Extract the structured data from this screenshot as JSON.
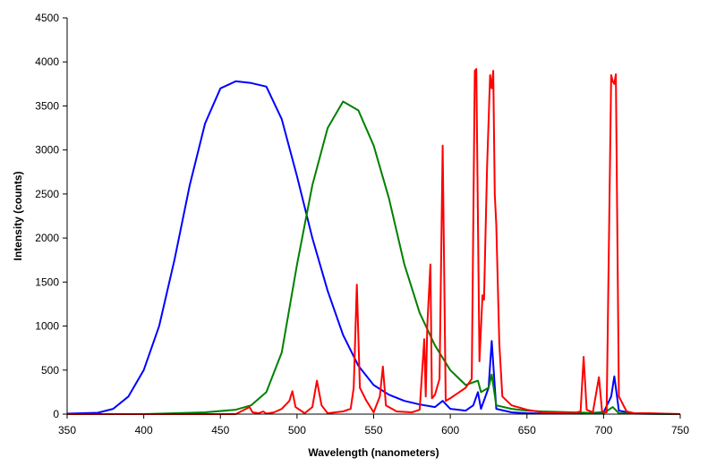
{
  "chart_data": {
    "type": "line",
    "xlabel": "Wavelength (nanometers)",
    "ylabel": "Intensity (counts)",
    "xlim": [
      350,
      750
    ],
    "ylim": [
      0,
      4500
    ],
    "xticks": [
      350,
      400,
      450,
      500,
      550,
      600,
      650,
      700,
      750
    ],
    "yticks": [
      0,
      500,
      1000,
      1500,
      2000,
      2500,
      3000,
      3500,
      4000,
      4500
    ],
    "grid": false,
    "legend": "none",
    "series": [
      {
        "color": "#0000ff",
        "x": [
          350,
          370,
          380,
          390,
          400,
          410,
          420,
          430,
          440,
          450,
          460,
          470,
          480,
          490,
          500,
          510,
          520,
          530,
          540,
          550,
          560,
          570,
          580,
          590,
          595,
          600,
          610,
          615,
          618,
          620,
          625,
          627,
          630,
          640,
          650,
          660,
          680,
          700,
          705,
          707,
          710,
          720,
          750
        ],
        "y": [
          5,
          15,
          60,
          200,
          500,
          1000,
          1750,
          2600,
          3300,
          3700,
          3780,
          3760,
          3720,
          3350,
          2700,
          2000,
          1400,
          900,
          550,
          330,
          220,
          150,
          110,
          80,
          150,
          60,
          40,
          100,
          250,
          60,
          300,
          830,
          60,
          20,
          10,
          5,
          5,
          20,
          200,
          430,
          40,
          5,
          0
        ]
      },
      {
        "color": "#008000",
        "x": [
          350,
          400,
          440,
          460,
          470,
          480,
          490,
          500,
          510,
          520,
          530,
          540,
          550,
          560,
          570,
          580,
          590,
          600,
          610,
          618,
          620,
          625,
          627,
          630,
          640,
          650,
          660,
          680,
          700,
          706,
          710,
          720,
          750
        ],
        "y": [
          0,
          0,
          20,
          50,
          100,
          250,
          700,
          1700,
          2600,
          3250,
          3550,
          3450,
          3050,
          2450,
          1700,
          1150,
          780,
          500,
          330,
          380,
          250,
          300,
          450,
          100,
          60,
          40,
          30,
          20,
          10,
          80,
          10,
          5,
          0
        ]
      },
      {
        "color": "#ff0000",
        "x": [
          350,
          460,
          469,
          471,
          475,
          478,
          480,
          485,
          490,
          495,
          497,
          499,
          505,
          510,
          513,
          516,
          520,
          530,
          535,
          537,
          539,
          541,
          545,
          550,
          554,
          556,
          558,
          565,
          575,
          580,
          583,
          584,
          585,
          587,
          588,
          590,
          593,
          595,
          597,
          600,
          605,
          610,
          614,
          616,
          617,
          619,
          621,
          622,
          624,
          626,
          627,
          628,
          629,
          630,
          632,
          634,
          640,
          650,
          660,
          670,
          680,
          685,
          687,
          689,
          693,
          697,
          699,
          702,
          705,
          706,
          707,
          708,
          710,
          715,
          720,
          730,
          750
        ],
        "y": [
          0,
          0,
          80,
          20,
          10,
          30,
          5,
          20,
          60,
          150,
          260,
          80,
          10,
          80,
          380,
          100,
          10,
          30,
          60,
          300,
          1470,
          300,
          160,
          20,
          200,
          540,
          100,
          30,
          20,
          50,
          850,
          200,
          1000,
          1700,
          180,
          220,
          400,
          3050,
          150,
          180,
          240,
          300,
          400,
          3900,
          3920,
          600,
          1350,
          1300,
          2800,
          3850,
          3700,
          3900,
          2500,
          2150,
          800,
          200,
          100,
          50,
          20,
          20,
          10,
          30,
          650,
          50,
          20,
          420,
          30,
          20,
          3850,
          3780,
          3750,
          3860,
          200,
          30,
          10,
          10,
          0
        ]
      }
    ]
  }
}
